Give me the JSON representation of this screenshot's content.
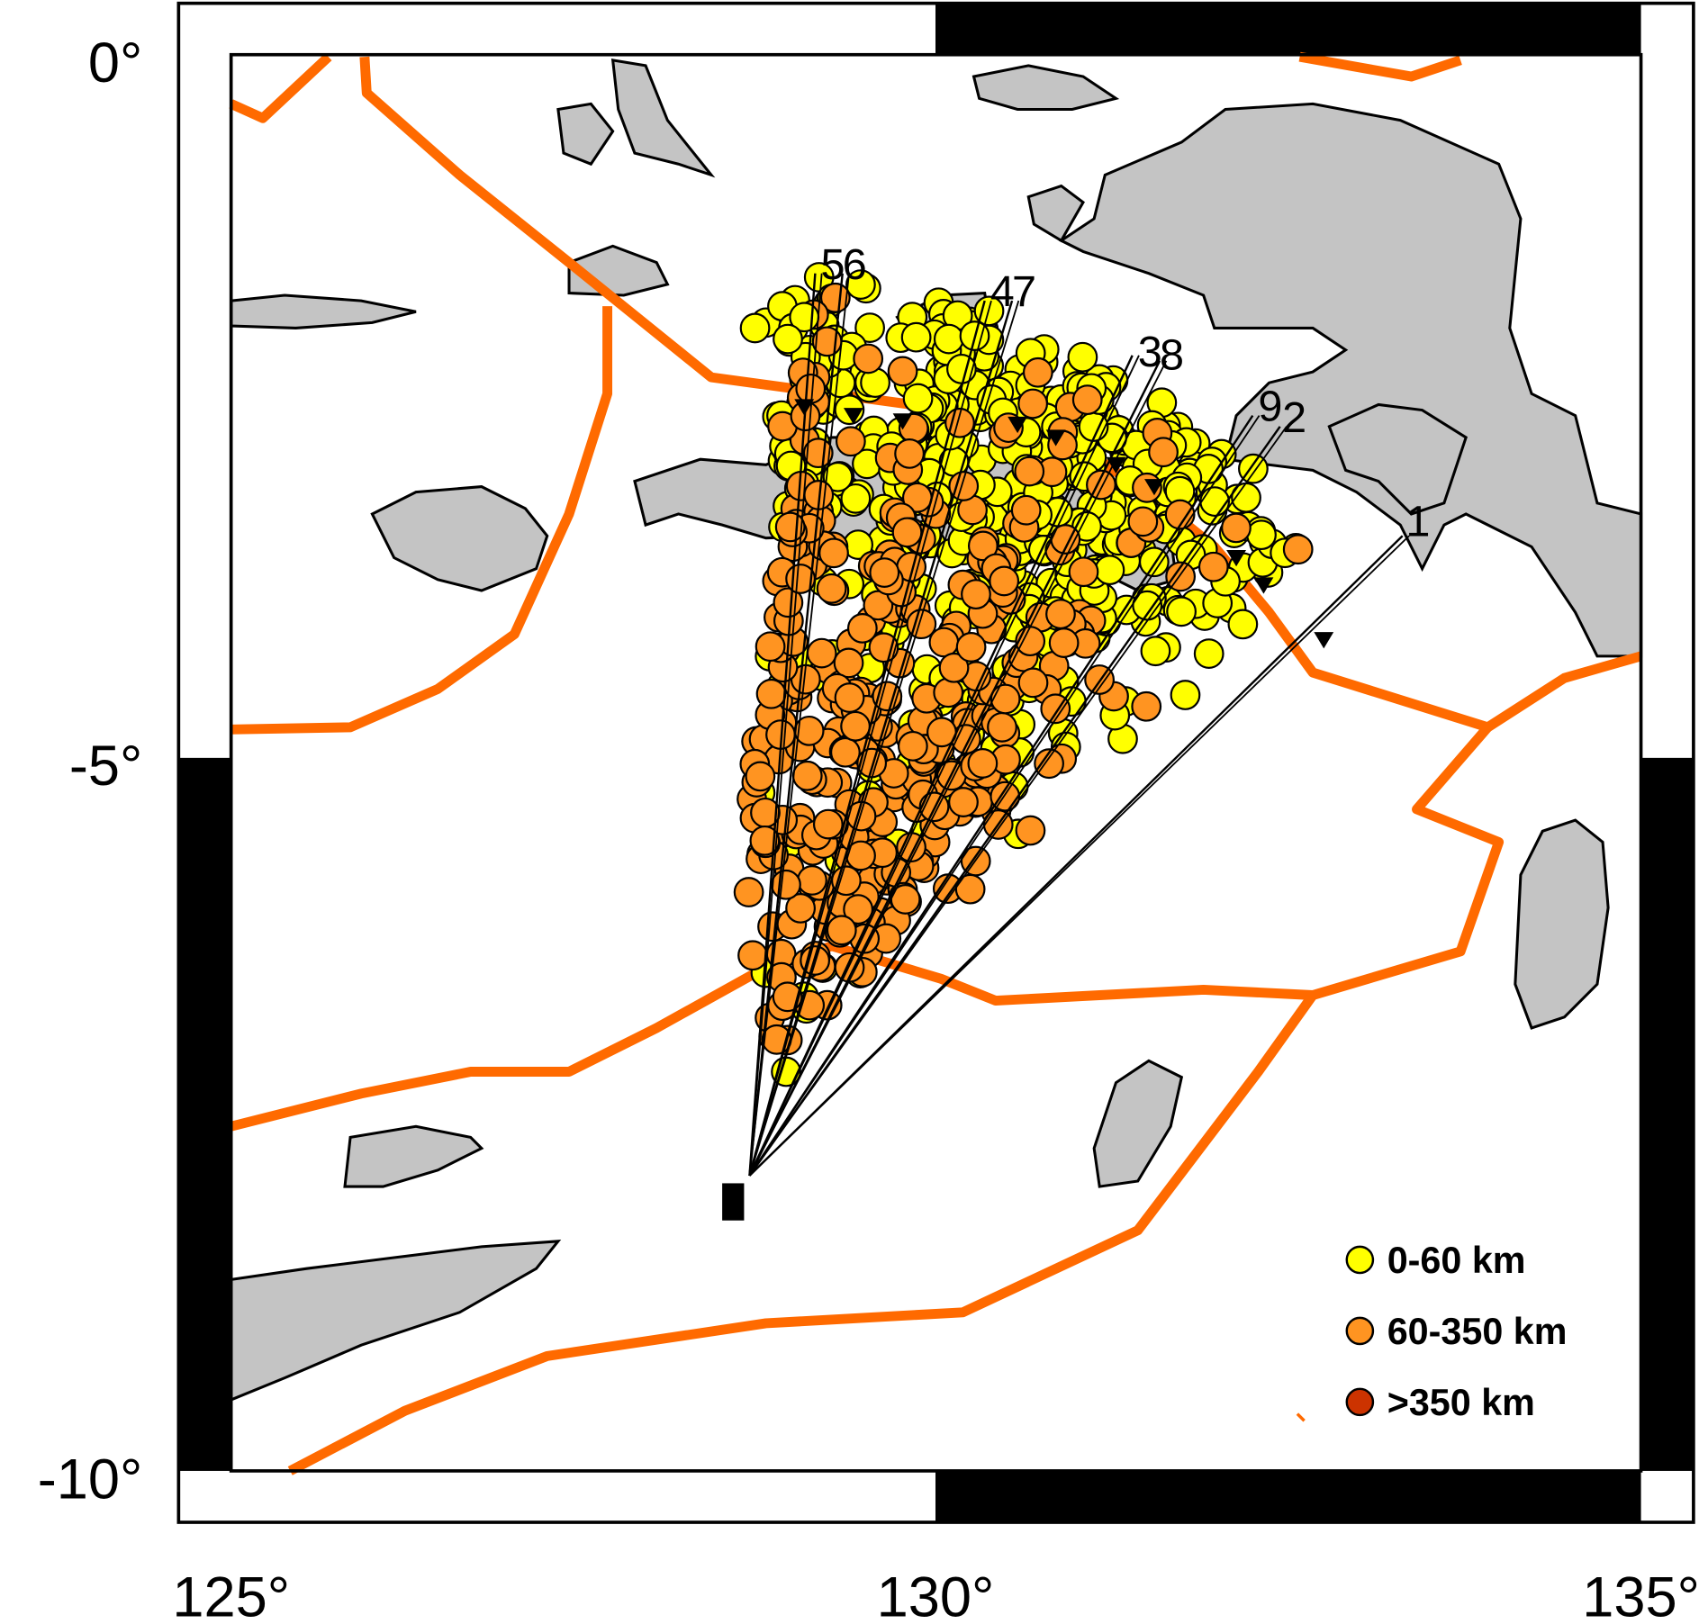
{
  "axes": {
    "lat_labels": [
      "0°",
      "-5°",
      "-10°"
    ],
    "lon_labels": [
      "125°",
      "130°",
      "135°"
    ]
  },
  "profiles": [
    "5",
    "6",
    "4",
    "7",
    "3",
    "8",
    "9",
    "2",
    "1"
  ],
  "legend": [
    "0-60 km",
    "60-350 km",
    ">350 km"
  ]
}
